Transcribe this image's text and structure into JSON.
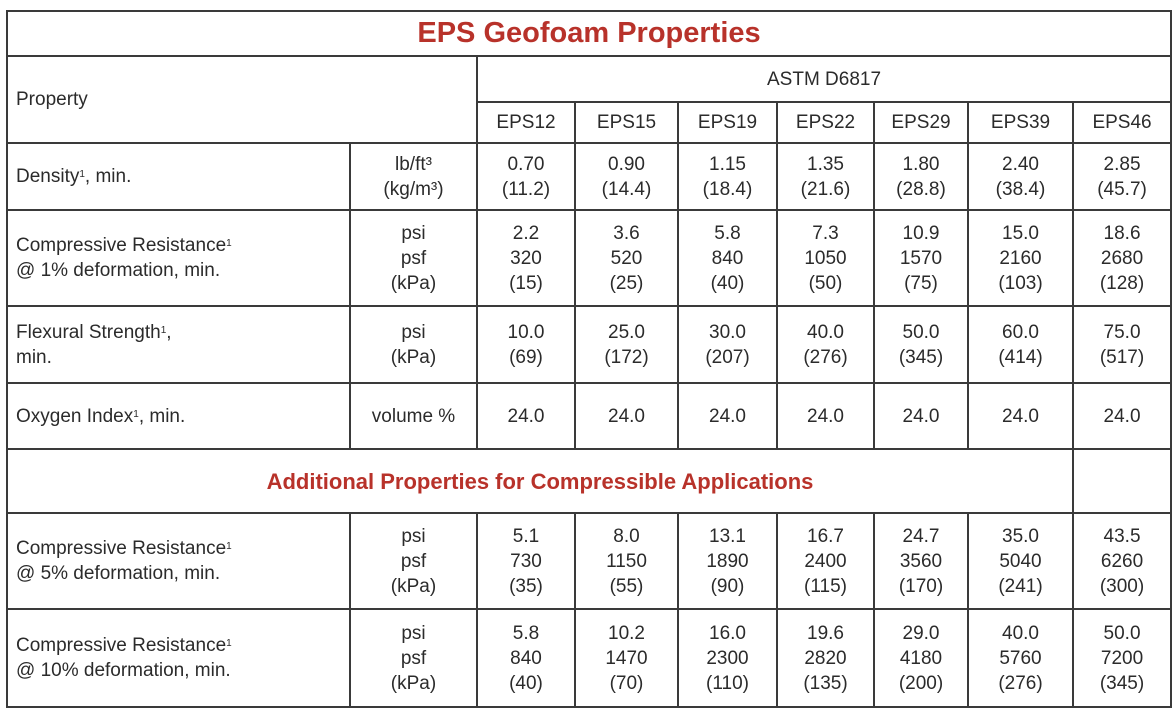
{
  "title": "EPS Geofoam Properties",
  "header": {
    "property_label": "Property",
    "standard": "ASTM D6817",
    "grades": [
      "EPS12",
      "EPS15",
      "EPS19",
      "EPS22",
      "EPS29",
      "EPS39",
      "EPS46"
    ]
  },
  "rows": [
    {
      "label": "Density",
      "sup": "1",
      "label_suffix": ", min.",
      "label_line2": "",
      "units": [
        "lb/ft³",
        "(kg/m³)"
      ],
      "values": [
        [
          "0.70",
          "(11.2)"
        ],
        [
          "0.90",
          "(14.4)"
        ],
        [
          "1.15",
          "(18.4)"
        ],
        [
          "1.35",
          "(21.6)"
        ],
        [
          "1.80",
          "(28.8)"
        ],
        [
          "2.40",
          "(38.4)"
        ],
        [
          "2.85",
          "(45.7)"
        ]
      ]
    },
    {
      "label": "Compressive Resistance",
      "sup": "1",
      "label_suffix": "",
      "label_line2": "@ 1% deformation, min.",
      "units": [
        "psi",
        "psf",
        "(kPa)"
      ],
      "values": [
        [
          "2.2",
          "320",
          "(15)"
        ],
        [
          "3.6",
          "520",
          "(25)"
        ],
        [
          "5.8",
          "840",
          "(40)"
        ],
        [
          "7.3",
          "1050",
          "(50)"
        ],
        [
          "10.9",
          "1570",
          "(75)"
        ],
        [
          "15.0",
          "2160",
          "(103)"
        ],
        [
          "18.6",
          "2680",
          "(128)"
        ]
      ]
    },
    {
      "label": "Flexural Strength",
      "sup": "1",
      "label_suffix": ",",
      "label_line2": "min.",
      "units": [
        "psi",
        "(kPa)"
      ],
      "values": [
        [
          "10.0",
          "(69)"
        ],
        [
          "25.0",
          "(172)"
        ],
        [
          "30.0",
          "(207)"
        ],
        [
          "40.0",
          "(276)"
        ],
        [
          "50.0",
          "(345)"
        ],
        [
          "60.0",
          "(414)"
        ],
        [
          "75.0",
          "(517)"
        ]
      ]
    },
    {
      "label": "Oxygen Index",
      "sup": "1",
      "label_suffix": ", min.",
      "label_line2": "",
      "units": [
        "volume %"
      ],
      "values": [
        [
          "24.0"
        ],
        [
          "24.0"
        ],
        [
          "24.0"
        ],
        [
          "24.0"
        ],
        [
          "24.0"
        ],
        [
          "24.0"
        ],
        [
          "24.0"
        ]
      ]
    }
  ],
  "additional_title": "Additional Properties for Compressible Applications",
  "additional_rows": [
    {
      "label": "Compressive Resistance",
      "sup": "1",
      "label_suffix": "",
      "label_line2": "@ 5% deformation, min.",
      "units": [
        "psi",
        "psf",
        "(kPa)"
      ],
      "values": [
        [
          "5.1",
          "730",
          "(35)"
        ],
        [
          "8.0",
          "1150",
          "(55)"
        ],
        [
          "13.1",
          "1890",
          "(90)"
        ],
        [
          "16.7",
          "2400",
          "(115)"
        ],
        [
          "24.7",
          "3560",
          "(170)"
        ],
        [
          "35.0",
          "5040",
          "(241)"
        ],
        [
          "43.5",
          "6260",
          "(300)"
        ]
      ]
    },
    {
      "label": "Compressive Resistance",
      "sup": "1",
      "label_suffix": "",
      "label_line2": "@ 10% deformation, min.",
      "units": [
        "psi",
        "psf",
        "(kPa)"
      ],
      "values": [
        [
          "5.8",
          "840",
          "(40)"
        ],
        [
          "10.2",
          "1470",
          "(70)"
        ],
        [
          "16.0",
          "2300",
          "(110)"
        ],
        [
          "19.6",
          "2820",
          "(135)"
        ],
        [
          "29.0",
          "4180",
          "(200)"
        ],
        [
          "40.0",
          "5760",
          "(276)"
        ],
        [
          "50.0",
          "7200",
          "(345)"
        ]
      ]
    }
  ],
  "colors": {
    "accent": "#b8322a",
    "border": "#3a3a3a",
    "text": "#2b2b2b"
  }
}
